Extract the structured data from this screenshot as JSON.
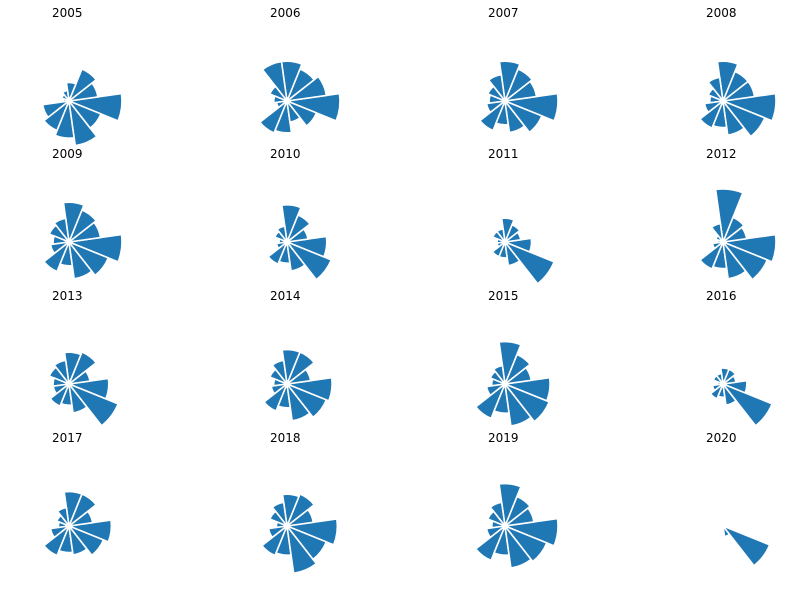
{
  "chart_data": [
    {
      "type": "polar-bar",
      "title": "2005",
      "values": [
        1.0,
        0.55,
        0.65,
        0.35,
        0.2,
        0.15,
        0.1,
        0.5,
        0.6,
        0.7,
        0.85,
        0.65
      ],
      "color": "#1f77b4"
    },
    {
      "type": "polar-bar",
      "title": "2006",
      "values": [
        1.0,
        0.75,
        0.65,
        0.75,
        0.75,
        0.35,
        0.25,
        0.2,
        0.65,
        0.6,
        0.4,
        0.6
      ],
      "color": "#1f77b4"
    },
    {
      "type": "polar-bar",
      "title": "2007",
      "values": [
        1.0,
        0.6,
        0.65,
        0.75,
        0.5,
        0.35,
        0.3,
        0.35,
        0.6,
        0.45,
        0.6,
        0.75
      ],
      "color": "#1f77b4"
    },
    {
      "type": "polar-bar",
      "title": "2008",
      "values": [
        1.0,
        0.6,
        0.6,
        0.75,
        0.45,
        0.3,
        0.25,
        0.35,
        0.55,
        0.5,
        0.65,
        0.85
      ],
      "color": "#1f77b4"
    },
    {
      "type": "polar-bar",
      "title": "2009",
      "values": [
        1.0,
        0.6,
        0.65,
        0.75,
        0.45,
        0.4,
        0.3,
        0.35,
        0.6,
        0.45,
        0.7,
        0.8
      ],
      "color": "#1f77b4"
    },
    {
      "type": "polar-bar",
      "title": "2010",
      "values": [
        0.75,
        0.4,
        0.55,
        0.7,
        0.3,
        0.25,
        0.15,
        0.2,
        0.45,
        0.4,
        0.55,
        0.9
      ],
      "color": "#1f77b4"
    },
    {
      "type": "polar-bar",
      "title": "2011",
      "values": [
        0.5,
        0.3,
        0.35,
        0.45,
        0.25,
        0.25,
        0.15,
        0.15,
        0.3,
        0.3,
        0.45,
        1.0
      ],
      "color": "#1f77b4"
    },
    {
      "type": "polar-bar",
      "title": "2012",
      "values": [
        1.0,
        0.45,
        0.5,
        1.0,
        0.35,
        0.15,
        0.1,
        0.2,
        0.55,
        0.5,
        0.7,
        0.9
      ],
      "color": "#1f77b4"
    },
    {
      "type": "polar-bar",
      "title": "2013",
      "values": [
        0.75,
        0.4,
        0.65,
        0.6,
        0.45,
        0.4,
        0.3,
        0.3,
        0.45,
        0.4,
        0.55,
        1.0
      ],
      "color": "#1f77b4"
    },
    {
      "type": "polar-bar",
      "title": "2014",
      "values": [
        0.85,
        0.45,
        0.65,
        0.65,
        0.45,
        0.35,
        0.25,
        0.3,
        0.55,
        0.45,
        0.7,
        0.8
      ],
      "color": "#1f77b4"
    },
    {
      "type": "polar-bar",
      "title": "2015",
      "values": [
        0.85,
        0.5,
        0.6,
        0.8,
        0.35,
        0.3,
        0.25,
        0.35,
        0.7,
        0.55,
        0.8,
        0.9
      ],
      "color": "#1f77b4"
    },
    {
      "type": "polar-bar",
      "title": "2016",
      "values": [
        0.45,
        0.25,
        0.3,
        0.3,
        0.2,
        0.2,
        0.1,
        0.2,
        0.3,
        0.25,
        0.4,
        1.0
      ],
      "color": "#1f77b4"
    },
    {
      "type": "polar-bar",
      "title": "2017",
      "values": [
        0.8,
        0.45,
        0.65,
        0.65,
        0.35,
        0.25,
        0.2,
        0.35,
        0.6,
        0.5,
        0.55,
        0.7
      ],
      "color": "#1f77b4"
    },
    {
      "type": "polar-bar",
      "title": "2018",
      "values": [
        0.95,
        0.5,
        0.65,
        0.6,
        0.45,
        0.35,
        0.2,
        0.35,
        0.6,
        0.55,
        0.9,
        0.8
      ],
      "color": "#1f77b4"
    },
    {
      "type": "polar-bar",
      "title": "2019",
      "values": [
        1.0,
        0.55,
        0.6,
        0.8,
        0.45,
        0.35,
        0.25,
        0.35,
        0.7,
        0.55,
        0.8,
        0.85
      ],
      "color": "#1f77b4"
    },
    {
      "type": "polar-bar",
      "title": "2020",
      "values": [
        0.0,
        0.0,
        0.0,
        0.0,
        0.0,
        0.0,
        0.0,
        0.0,
        0.0,
        0.0,
        0.2,
        0.95
      ],
      "color": "#1f77b4"
    }
  ]
}
